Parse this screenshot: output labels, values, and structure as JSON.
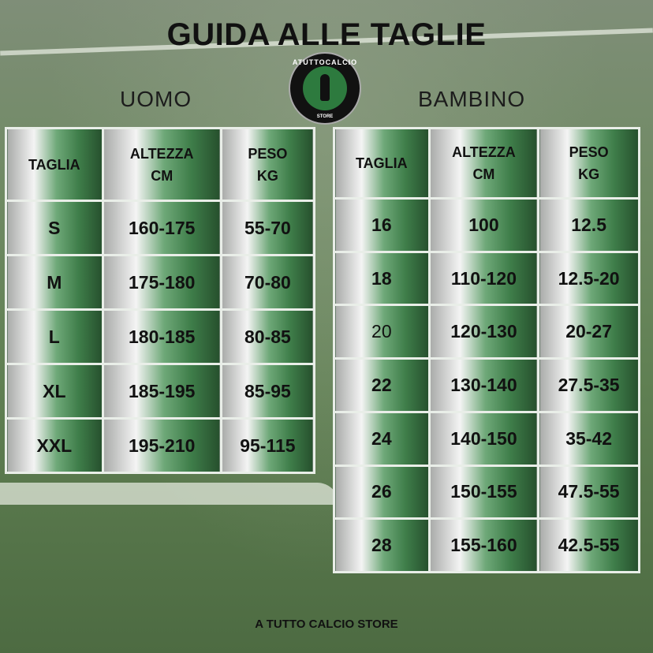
{
  "title": "GUIDA ALLE TAGLIE",
  "logo": {
    "text": "ATUTTOCALCIO",
    "store": "STORE"
  },
  "uomo": {
    "label": "UOMO",
    "headers": [
      "TAGLIA",
      "ALTEZZA CM",
      "PESO KG"
    ],
    "rows": [
      [
        "S",
        "160-175",
        "55-70"
      ],
      [
        "M",
        "175-180",
        "70-80"
      ],
      [
        "L",
        "180-185",
        "80-85"
      ],
      [
        "XL",
        "185-195",
        "85-95"
      ],
      [
        "XXL",
        "195-210",
        "95-115"
      ]
    ]
  },
  "bambino": {
    "label": "BAMBINO",
    "headers": [
      "TAGLIA",
      "ALTEZZA CM",
      "PESO KG"
    ],
    "rows": [
      [
        "16",
        "100",
        "12.5"
      ],
      [
        "18",
        "110-120",
        "12.5-20"
      ],
      [
        "20",
        "120-130",
        "20-27"
      ],
      [
        "22",
        "130-140",
        "27.5-35"
      ],
      [
        "24",
        "140-150",
        "35-42"
      ],
      [
        "26",
        "150-155",
        "47.5-55"
      ],
      [
        "28",
        "155-160",
        "42.5-55"
      ]
    ]
  },
  "footer": "A TUTTO CALCIO STORE",
  "colors": {
    "gradient_green": "#3f7e4a",
    "dark_green": "#26502d",
    "grey": "#a9aba9"
  }
}
